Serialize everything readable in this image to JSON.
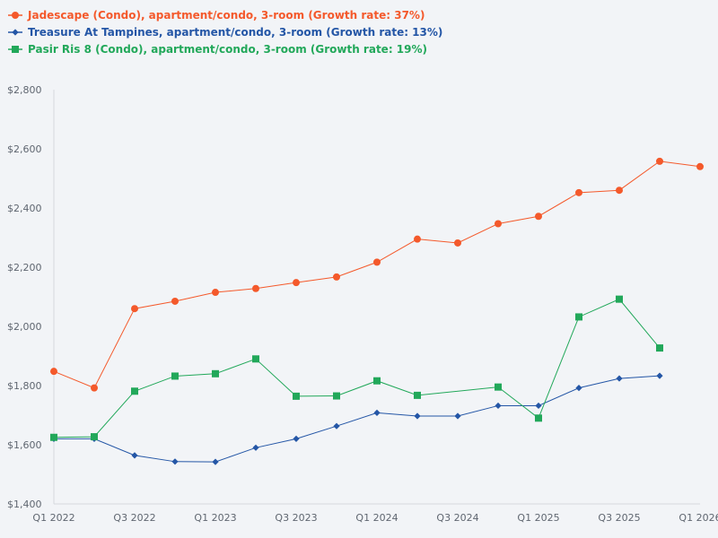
{
  "chart_data": {
    "type": "line",
    "title": "",
    "xlabel": "",
    "ylabel": "",
    "ylim": [
      1400,
      2800
    ],
    "yticks": [
      1400,
      1600,
      1800,
      2000,
      2200,
      2400,
      2600,
      2800
    ],
    "ytick_labels": [
      "$1,400",
      "$1,600",
      "$1,800",
      "$2,000",
      "$2,200",
      "$2,400",
      "$2,600",
      "$2,800"
    ],
    "x_range": [
      0,
      16
    ],
    "xticks": [
      0,
      2,
      4,
      6,
      8,
      10,
      12,
      14,
      16
    ],
    "xtick_labels": [
      "Q1 2022",
      "Q3 2022",
      "Q1 2023",
      "Q3 2023",
      "Q1 2024",
      "Q3 2024",
      "Q1 2025",
      "Q3 2025",
      "Q1 2026"
    ],
    "grid": false,
    "legend_position": "top-left",
    "series": [
      {
        "name": "Jadescape (Condo), apartment/condo, 3-room (Growth rate: 37%)",
        "color": "#f4592b",
        "marker": "circle",
        "x": [
          0,
          1,
          2,
          3,
          4,
          5,
          6,
          7,
          8,
          9,
          10,
          11,
          12,
          13,
          14,
          15,
          16
        ],
        "values": [
          1848,
          1792,
          2060,
          2085,
          2115,
          2128,
          2148,
          2167,
          2217,
          2295,
          2282,
          2347,
          2372,
          2452,
          2460,
          2558,
          2540
        ]
      },
      {
        "name": "Treasure At Tampines, apartment/condo, 3-room (Growth rate: 13%)",
        "color": "#2456a6",
        "marker": "diamond",
        "x": [
          0,
          1,
          2,
          3,
          4,
          5,
          6,
          7,
          8,
          9,
          10,
          11,
          12,
          13,
          14,
          15
        ],
        "values": [
          1620,
          1620,
          1564,
          1543,
          1542,
          1590,
          1620,
          1663,
          1708,
          1697,
          1697,
          1732,
          1732,
          1792,
          1824,
          1833
        ]
      },
      {
        "name": "Pasir Ris 8 (Condo), apartment/condo, 3-room (Growth rate: 19%)",
        "color": "#22a85a",
        "marker": "square",
        "x": [
          0,
          1,
          2,
          3,
          4,
          5,
          6,
          7,
          8,
          9,
          11,
          12,
          13,
          14,
          15
        ],
        "values": [
          1625,
          1627,
          1781,
          1832,
          1840,
          1890,
          1764,
          1765,
          1816,
          1767,
          1795,
          1690,
          2032,
          2092,
          1927
        ]
      }
    ]
  }
}
